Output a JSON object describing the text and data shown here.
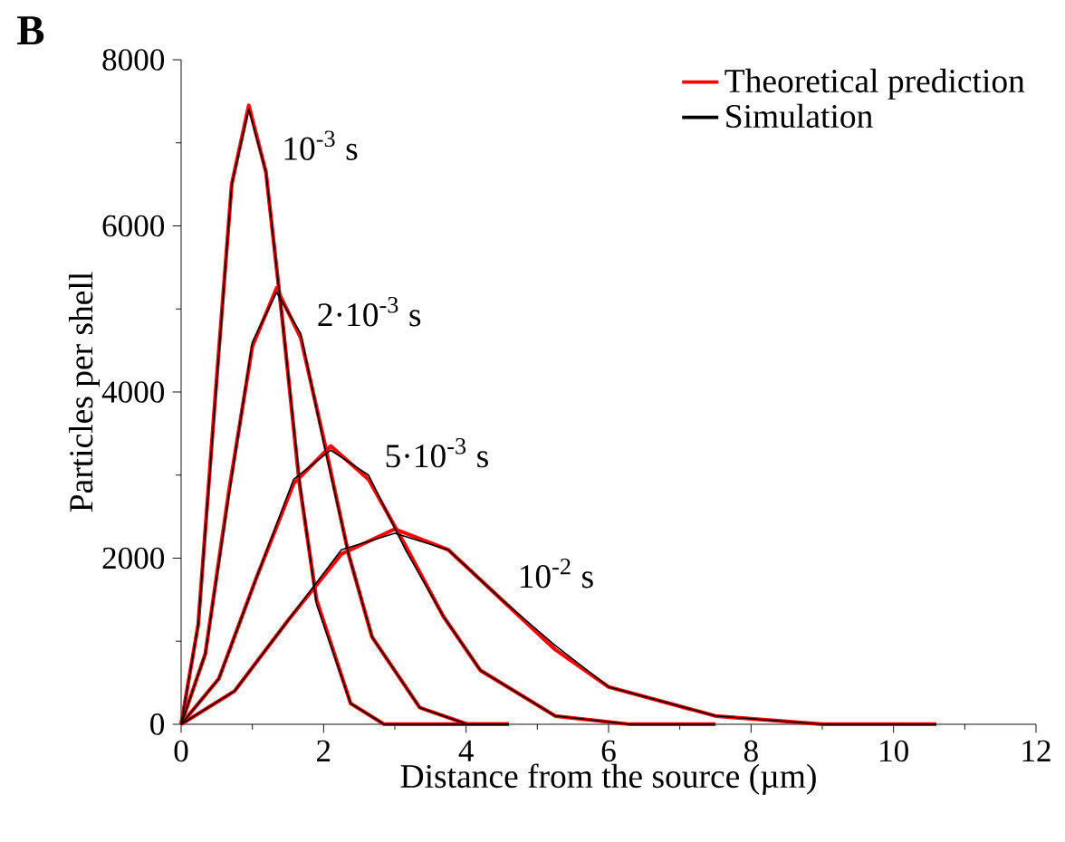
{
  "chart_data": {
    "type": "line",
    "xlabel": "Distance from the source (µm)",
    "ylabel": "Particles per shell",
    "xlim": [
      0,
      12
    ],
    "xticks": [
      0,
      2,
      4,
      6,
      8,
      10,
      12
    ],
    "ylim": [
      0,
      8000
    ],
    "yticks": [
      0,
      2000,
      4000,
      6000,
      8000
    ],
    "legend": "top right",
    "marker": "none",
    "line_style": "solid",
    "annotations": [
      "**B**",
      {
        "text": "10$^{-3}$ s",
        "x": 1.19,
        "y": 6650
      },
      {
        "text": "2·10$^{-3}$ s",
        "x": 1.68,
        "y": 4650
      },
      {
        "text": "5·10$^{-3}$ s",
        "x": 2.63,
        "y": 2950
      },
      {
        "text": "10$^{-2}$ s",
        "x": 4.5,
        "y": 1500
      }
    ],
    "series": [
      {
        "name": "Theoretical prediction",
        "color": "#ff0000",
        "x": [
          0,
          0.24,
          0.48,
          0.71,
          0.95,
          1.19,
          1.43,
          1.66,
          1.9,
          2.38,
          2.85,
          4.6
        ],
        "values": [
          0,
          1200,
          3950,
          6500,
          7450,
          6650,
          4800,
          2900,
          1500,
          250,
          0,
          0
        ]
      },
      {
        "color": "#ff0000",
        "x": [
          0,
          0.34,
          0.67,
          1.0,
          1.34,
          1.68,
          2.01,
          2.35,
          2.68,
          3.35,
          4.02,
          4.6
        ],
        "values": [
          0,
          850,
          2800,
          4550,
          5250,
          4650,
          3400,
          2050,
          1050,
          200,
          0,
          0
        ]
      },
      {
        "color": "#ff0000",
        "x": [
          0,
          0.53,
          1.05,
          1.58,
          2.1,
          2.63,
          3.15,
          3.68,
          4.2,
          5.25,
          6.3,
          7.5
        ],
        "values": [
          0,
          550,
          1750,
          2900,
          3350,
          2950,
          2150,
          1300,
          650,
          100,
          0,
          0
        ]
      },
      {
        "color": "#ff0000",
        "x": [
          0,
          0.75,
          1.5,
          2.25,
          3.0,
          3.75,
          4.5,
          5.25,
          6.0,
          7.5,
          9.0,
          10.6
        ],
        "values": [
          0,
          400,
          1250,
          2050,
          2350,
          2100,
          1500,
          900,
          450,
          100,
          0,
          0
        ]
      },
      {
        "name": "Simulation",
        "color": "#000000",
        "x": [
          0,
          0.24,
          0.48,
          0.71,
          0.95,
          1.19,
          1.43,
          1.66,
          1.9,
          2.38,
          2.85,
          4.6
        ],
        "values": [
          0,
          1200,
          3900,
          6500,
          7400,
          6650,
          4800,
          2950,
          1450,
          250,
          0,
          0
        ]
      },
      {
        "color": "#000000",
        "x": [
          0,
          0.34,
          0.67,
          1.0,
          1.34,
          1.68,
          2.01,
          2.35,
          2.68,
          3.35,
          4.02,
          4.6
        ],
        "values": [
          0,
          850,
          2750,
          4600,
          5200,
          4700,
          3350,
          2050,
          1050,
          200,
          0,
          0
        ]
      },
      {
        "color": "#000000",
        "x": [
          0,
          0.53,
          1.05,
          1.58,
          2.1,
          2.63,
          3.15,
          3.68,
          4.2,
          5.25,
          6.3,
          7.5
        ],
        "values": [
          0,
          550,
          1750,
          2950,
          3300,
          3000,
          2100,
          1300,
          650,
          100,
          0,
          0
        ]
      },
      {
        "color": "#000000",
        "x": [
          0,
          0.75,
          1.5,
          2.25,
          3.0,
          3.75,
          4.5,
          5.25,
          6.0,
          7.5,
          9.0,
          10.6
        ],
        "values": [
          0,
          400,
          1250,
          2100,
          2300,
          2100,
          1500,
          950,
          450,
          100,
          0,
          0
        ]
      }
    ]
  }
}
